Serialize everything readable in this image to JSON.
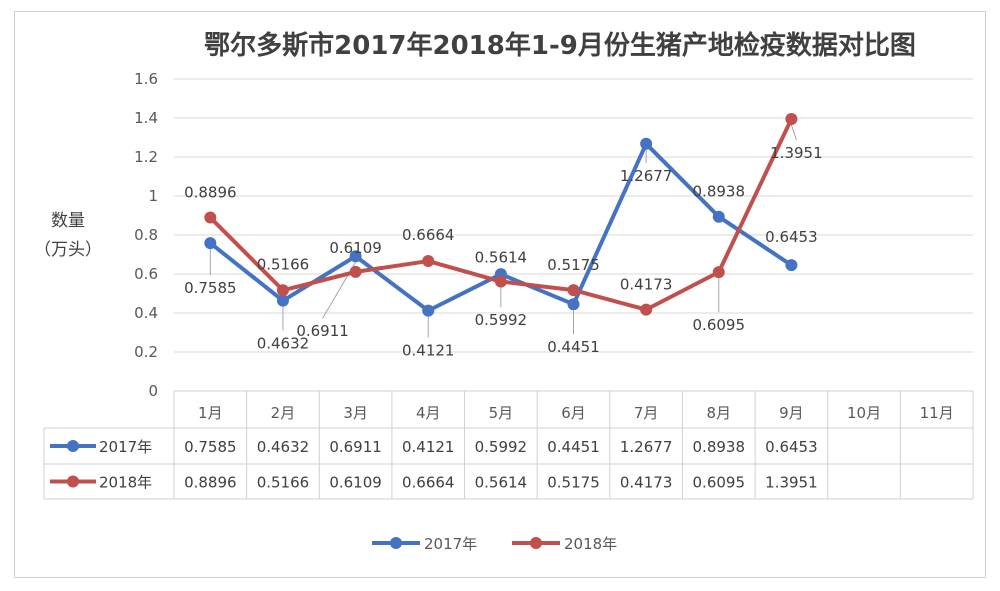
{
  "chart_data": {
    "type": "line",
    "title": "鄂尔多斯市2017年2018年1-9月份生猪产地检疫数据对比图",
    "ylabel_line1": "数量",
    "ylabel_line2": "（万头）",
    "ylim": [
      0,
      1.6
    ],
    "yticks": [
      0,
      0.2,
      0.4,
      0.6,
      0.8,
      1,
      1.2,
      1.4,
      1.6
    ],
    "ytick_labels": [
      "0",
      "0.2",
      "0.4",
      "0.6",
      "0.8",
      "1",
      "1.2",
      "1.4",
      "1.6"
    ],
    "grid": true,
    "legend_position": "bottom",
    "data_table": true,
    "categories": [
      "1月",
      "2月",
      "3月",
      "4月",
      "5月",
      "6月",
      "7月",
      "8月",
      "9月",
      "10月",
      "11月"
    ],
    "series": [
      {
        "name": "2017年",
        "color": "#4472C4",
        "values": [
          0.7585,
          0.4632,
          0.6911,
          0.4121,
          0.5992,
          0.4451,
          1.2677,
          0.8938,
          0.6453,
          null,
          null
        ],
        "labels": [
          "0.7585",
          "0.4632",
          "0.6911",
          "0.4121",
          "0.5992",
          "0.4451",
          "1.2677",
          "0.8938",
          "0.6453",
          "",
          ""
        ]
      },
      {
        "name": "2018年",
        "color": "#C0504D",
        "values": [
          0.8896,
          0.5166,
          0.6109,
          0.6664,
          0.5614,
          0.5175,
          0.4173,
          0.6095,
          1.3951,
          null,
          null
        ],
        "labels": [
          "0.8896",
          "0.5166",
          "0.6109",
          "0.6664",
          "0.5614",
          "0.5175",
          "0.4173",
          "0.6095",
          "1.3951",
          "",
          ""
        ]
      }
    ]
  }
}
